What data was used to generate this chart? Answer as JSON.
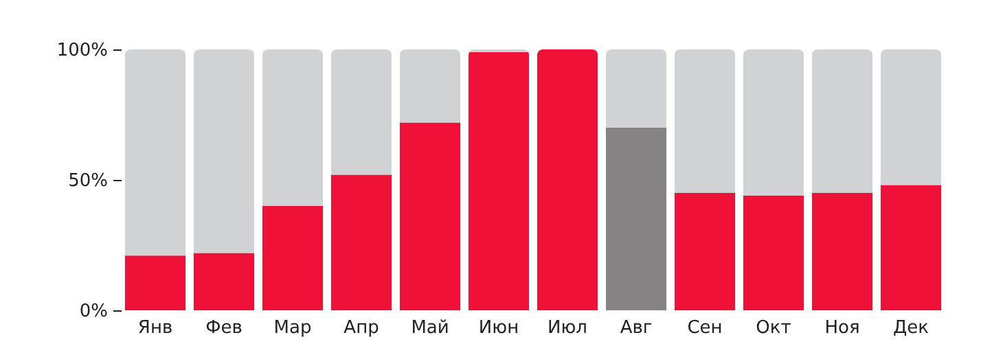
{
  "chart_data": {
    "type": "bar",
    "stacked": true,
    "categories": [
      "Янв",
      "Фев",
      "Мар",
      "Апр",
      "Май",
      "Июн",
      "Июл",
      "Авг",
      "Сен",
      "Окт",
      "Ноя",
      "Дек"
    ],
    "series": [
      {
        "colors": [
          "#ef1138",
          "#ef1138",
          "#ef1138",
          "#ef1138",
          "#ef1138",
          "#ef1138",
          "#ef1138",
          "#858383",
          "#ef1138",
          "#ef1138",
          "#ef1138",
          "#ef1138"
        ],
        "values": [
          21,
          22,
          40,
          52,
          72,
          99,
          100,
          70,
          45,
          44,
          45,
          48
        ]
      },
      {
        "color": "#d1d2d4",
        "values": [
          79,
          78,
          60,
          48,
          28,
          1,
          0,
          30,
          55,
          56,
          55,
          52
        ]
      }
    ],
    "ylim": [
      0,
      100
    ],
    "yticks": [
      {
        "value": 0,
        "label": "0%"
      },
      {
        "value": 50,
        "label": "50%"
      },
      {
        "value": 100,
        "label": "100%"
      }
    ],
    "grid": false
  }
}
